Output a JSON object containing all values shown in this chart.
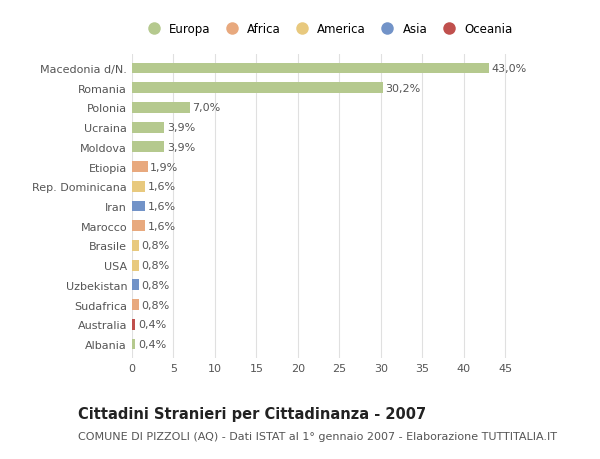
{
  "categories": [
    "Macedonia d/N.",
    "Romania",
    "Polonia",
    "Ucraina",
    "Moldova",
    "Etiopia",
    "Rep. Dominicana",
    "Iran",
    "Marocco",
    "Brasile",
    "USA",
    "Uzbekistan",
    "Sudafrica",
    "Australia",
    "Albania"
  ],
  "values": [
    43.0,
    30.2,
    7.0,
    3.9,
    3.9,
    1.9,
    1.6,
    1.6,
    1.6,
    0.8,
    0.8,
    0.8,
    0.8,
    0.4,
    0.4
  ],
  "labels": [
    "43,0%",
    "30,2%",
    "7,0%",
    "3,9%",
    "3,9%",
    "1,9%",
    "1,6%",
    "1,6%",
    "1,6%",
    "0,8%",
    "0,8%",
    "0,8%",
    "0,8%",
    "0,4%",
    "0,4%"
  ],
  "colors": [
    "#b5c98e",
    "#b5c98e",
    "#b5c98e",
    "#b5c98e",
    "#b5c98e",
    "#e8a97e",
    "#e8c97e",
    "#7293c8",
    "#e8a97e",
    "#e8c97e",
    "#e8c97e",
    "#7293c8",
    "#e8a97e",
    "#c0504d",
    "#b5c98e"
  ],
  "legend_labels": [
    "Europa",
    "Africa",
    "America",
    "Asia",
    "Oceania"
  ],
  "legend_colors": [
    "#b5c98e",
    "#e8a97e",
    "#e8c97e",
    "#7293c8",
    "#c0504d"
  ],
  "title": "Cittadini Stranieri per Cittadinanza - 2007",
  "subtitle": "COMUNE DI PIZZOLI (AQ) - Dati ISTAT al 1° gennaio 2007 - Elaborazione TUTTITALIA.IT",
  "xlim": [
    0,
    47
  ],
  "xticks": [
    0,
    5,
    10,
    15,
    20,
    25,
    30,
    35,
    40,
    45
  ],
  "background_color": "#ffffff",
  "grid_color": "#e0e0e0",
  "bar_height": 0.55,
  "title_fontsize": 10.5,
  "subtitle_fontsize": 8,
  "label_fontsize": 8,
  "tick_fontsize": 8,
  "legend_fontsize": 8.5
}
